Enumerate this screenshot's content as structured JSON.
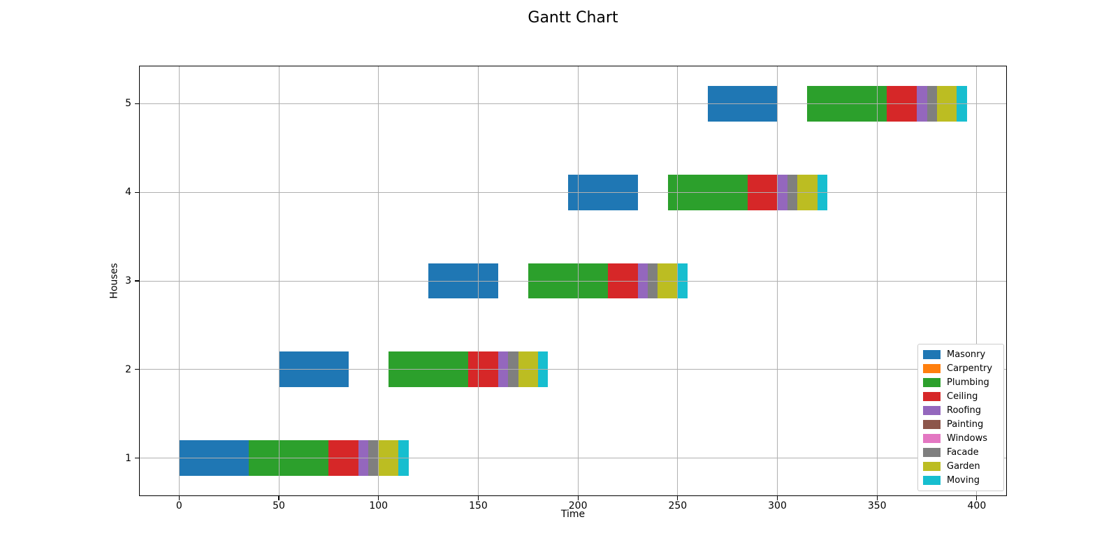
{
  "chart_data": {
    "type": "bar",
    "subtype": "gantt",
    "title": "Gantt Chart",
    "xlabel": "Time",
    "ylabel": "Houses",
    "grid": true,
    "legend_position": "lower right",
    "xlim": [
      -19.75,
      414.75
    ],
    "ylim": [
      0.58,
      5.42
    ],
    "x_ticks": [
      0,
      50,
      100,
      150,
      200,
      250,
      300,
      350,
      400
    ],
    "x_tick_labels": [
      "0",
      "50",
      "100",
      "150",
      "200",
      "250",
      "300",
      "350",
      "400"
    ],
    "y_ticks": [
      1,
      2,
      3,
      4,
      5
    ],
    "y_tick_labels": [
      "1",
      "2",
      "3",
      "4",
      "5"
    ],
    "bar_height": 0.4,
    "grid_color": "#b0b0b0",
    "series": [
      {
        "name": "Masonry",
        "color": "#1f77b4",
        "bars": [
          {
            "house": 1,
            "start": 0,
            "end": 35
          },
          {
            "house": 2,
            "start": 50,
            "end": 85
          },
          {
            "house": 3,
            "start": 125,
            "end": 160
          },
          {
            "house": 4,
            "start": 195,
            "end": 230
          },
          {
            "house": 5,
            "start": 265,
            "end": 300
          }
        ]
      },
      {
        "name": "Carpentry",
        "color": "#ff7f0e",
        "bars": []
      },
      {
        "name": "Plumbing",
        "color": "#2ca02c",
        "bars": [
          {
            "house": 1,
            "start": 35,
            "end": 75
          },
          {
            "house": 2,
            "start": 105,
            "end": 145
          },
          {
            "house": 3,
            "start": 175,
            "end": 215
          },
          {
            "house": 4,
            "start": 245,
            "end": 285
          },
          {
            "house": 5,
            "start": 315,
            "end": 355
          }
        ]
      },
      {
        "name": "Ceiling",
        "color": "#d62728",
        "bars": [
          {
            "house": 1,
            "start": 75,
            "end": 90
          },
          {
            "house": 2,
            "start": 145,
            "end": 160
          },
          {
            "house": 3,
            "start": 215,
            "end": 230
          },
          {
            "house": 4,
            "start": 285,
            "end": 300
          },
          {
            "house": 5,
            "start": 355,
            "end": 370
          }
        ]
      },
      {
        "name": "Roofing",
        "color": "#9467bd",
        "bars": [
          {
            "house": 1,
            "start": 90,
            "end": 95
          },
          {
            "house": 2,
            "start": 160,
            "end": 165
          },
          {
            "house": 3,
            "start": 230,
            "end": 235
          },
          {
            "house": 4,
            "start": 300,
            "end": 305
          },
          {
            "house": 5,
            "start": 370,
            "end": 375
          }
        ]
      },
      {
        "name": "Painting",
        "color": "#8c564b",
        "bars": []
      },
      {
        "name": "Windows",
        "color": "#e377c2",
        "bars": []
      },
      {
        "name": "Facade",
        "color": "#7f7f7f",
        "bars": [
          {
            "house": 1,
            "start": 95,
            "end": 100
          },
          {
            "house": 2,
            "start": 165,
            "end": 170
          },
          {
            "house": 3,
            "start": 235,
            "end": 240
          },
          {
            "house": 4,
            "start": 305,
            "end": 310
          },
          {
            "house": 5,
            "start": 375,
            "end": 380
          }
        ]
      },
      {
        "name": "Garden",
        "color": "#bcbd22",
        "bars": [
          {
            "house": 1,
            "start": 100,
            "end": 110
          },
          {
            "house": 2,
            "start": 170,
            "end": 180
          },
          {
            "house": 3,
            "start": 240,
            "end": 250
          },
          {
            "house": 4,
            "start": 310,
            "end": 320
          },
          {
            "house": 5,
            "start": 380,
            "end": 390
          }
        ]
      },
      {
        "name": "Moving",
        "color": "#17becf",
        "bars": [
          {
            "house": 1,
            "start": 110,
            "end": 115
          },
          {
            "house": 2,
            "start": 180,
            "end": 185
          },
          {
            "house": 3,
            "start": 250,
            "end": 255
          },
          {
            "house": 4,
            "start": 320,
            "end": 325
          },
          {
            "house": 5,
            "start": 390,
            "end": 395
          }
        ]
      }
    ]
  }
}
